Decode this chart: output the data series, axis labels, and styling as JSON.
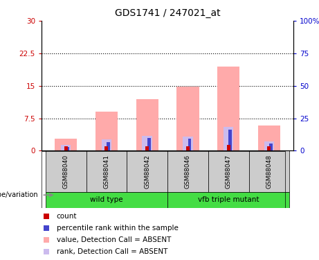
{
  "title": "GDS1741 / 247021_at",
  "samples": [
    "GSM88040",
    "GSM88041",
    "GSM88042",
    "GSM88046",
    "GSM88047",
    "GSM88048"
  ],
  "groups": [
    {
      "label": "wild type",
      "indices": [
        0,
        1,
        2
      ],
      "color": "#44dd44"
    },
    {
      "label": "vfb triple mutant",
      "indices": [
        3,
        4,
        5
      ],
      "color": "#44dd44"
    }
  ],
  "ylim_left": [
    0,
    30
  ],
  "ylim_right": [
    0,
    100
  ],
  "yticks_left": [
    0,
    7.5,
    15,
    22.5,
    30
  ],
  "yticks_right": [
    0,
    25,
    50,
    75,
    100
  ],
  "ytick_labels_left": [
    "0",
    "7.5",
    "15",
    "22.5",
    "30"
  ],
  "ytick_labels_right": [
    "0",
    "25",
    "50",
    "75",
    "100%"
  ],
  "left_axis_color": "#cc0000",
  "right_axis_color": "#0000cc",
  "bar_value_absent": [
    2.8,
    9.0,
    12.0,
    14.8,
    19.5,
    5.8
  ],
  "bar_rank_absent": [
    1.3,
    2.7,
    3.5,
    3.3,
    5.5,
    2.1
  ],
  "count_values": [
    1.0,
    1.1,
    1.1,
    1.1,
    1.3,
    1.0
  ],
  "rank_values": [
    0.9,
    2.0,
    3.0,
    2.8,
    4.8,
    1.7
  ],
  "bar_color_absent_value": "#ffaaaa",
  "bar_color_absent_rank": "#ccbbee",
  "count_color": "#cc0000",
  "rank_color": "#4444cc",
  "bar_width": 0.55,
  "legend_items": [
    {
      "label": "count",
      "color": "#cc0000"
    },
    {
      "label": "percentile rank within the sample",
      "color": "#4444cc"
    },
    {
      "label": "value, Detection Call = ABSENT",
      "color": "#ffaaaa"
    },
    {
      "label": "rank, Detection Call = ABSENT",
      "color": "#ccbbee"
    }
  ],
  "label_area_color": "#cccccc",
  "genotype_label": "genotype/variation"
}
